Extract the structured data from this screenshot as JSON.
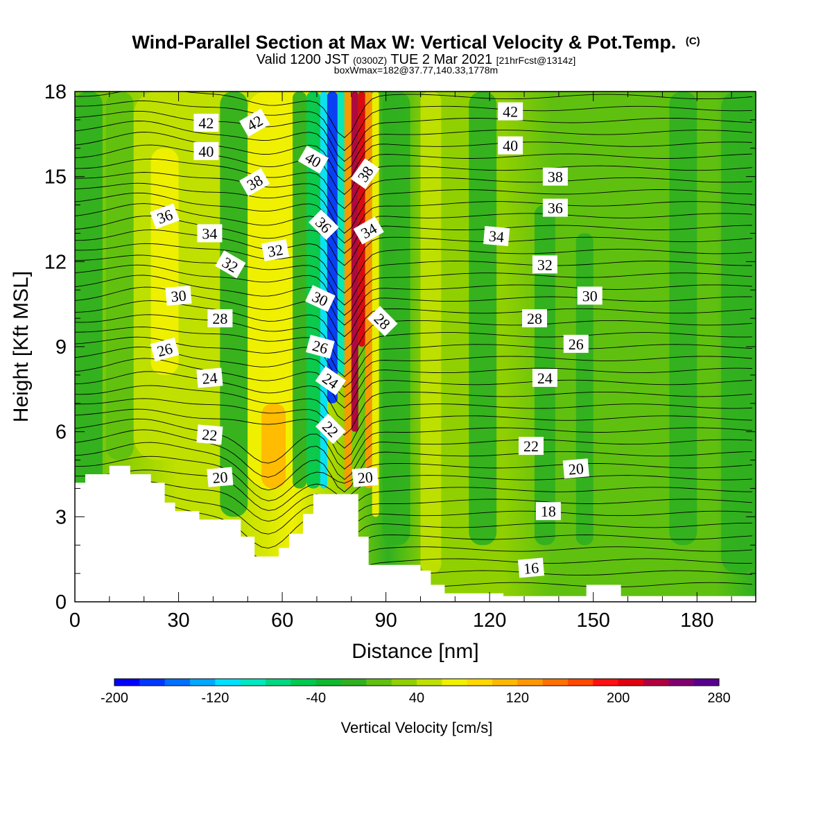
{
  "title": "Wind-Parallel Section at Max W: Vertical Velocity & Pot.Temp.",
  "title_mark": "(C)",
  "subtitle_a": "Valid 1200 JST ",
  "subtitle_b": "(0300Z)",
  "subtitle_c": " TUE 2 Mar 2021 ",
  "subtitle_d": "[21hrFcst@1314z]",
  "subtitle2": "boxWmax=182@37.77,140.33,1778m",
  "chart_data": {
    "type": "heatmap",
    "title": "Wind-Parallel Section at Max W: Vertical Velocity & Pot.Temp.",
    "xlabel": "Distance [nm]",
    "ylabel": "Height [Kft MSL]",
    "xlim": [
      0,
      197
    ],
    "ylim": [
      0,
      18
    ],
    "x_ticks": [
      0,
      30,
      60,
      90,
      120,
      150,
      180
    ],
    "y_ticks": [
      0,
      3,
      6,
      9,
      12,
      15,
      18
    ],
    "x_minor_step": 10,
    "y_minor_step": 1,
    "colorbar": {
      "label": "Vertical Velocity [cm/s]",
      "min": -200,
      "max": 280,
      "step": 20,
      "tick_labels": [
        -200,
        -120,
        -40,
        40,
        120,
        200,
        280
      ],
      "colors": [
        "#0000ff",
        "#0038ff",
        "#0070ff",
        "#00a8ff",
        "#00e0ff",
        "#00e8c0",
        "#00d880",
        "#00c850",
        "#10b830",
        "#30b020",
        "#60c010",
        "#90d000",
        "#c0e000",
        "#f0f000",
        "#ffd800",
        "#ffb800",
        "#ff9800",
        "#ff7000",
        "#ff4800",
        "#ff1010",
        "#e00010",
        "#b00040",
        "#800070",
        "#5a0090"
      ]
    },
    "isentropes_label": "Pot.Temp. (C)",
    "isentrope_labels": [
      {
        "v": "42",
        "x": 38,
        "y": 16.9,
        "r": 0
      },
      {
        "v": "42",
        "x": 52,
        "y": 16.9,
        "r": -30
      },
      {
        "v": "42",
        "x": 126,
        "y": 17.3,
        "r": 0
      },
      {
        "v": "40",
        "x": 38,
        "y": 15.9,
        "r": 0
      },
      {
        "v": "40",
        "x": 69,
        "y": 15.6,
        "r": 30
      },
      {
        "v": "40",
        "x": 126,
        "y": 16.1,
        "r": 0
      },
      {
        "v": "38",
        "x": 52,
        "y": 14.8,
        "r": -30
      },
      {
        "v": "38",
        "x": 84,
        "y": 15.1,
        "r": -55
      },
      {
        "v": "38",
        "x": 139,
        "y": 15.0,
        "r": 0
      },
      {
        "v": "36",
        "x": 26,
        "y": 13.6,
        "r": -20
      },
      {
        "v": "36",
        "x": 72,
        "y": 13.3,
        "r": 45
      },
      {
        "v": "36",
        "x": 139,
        "y": 13.9,
        "r": 0
      },
      {
        "v": "34",
        "x": 39,
        "y": 13.0,
        "r": 0
      },
      {
        "v": "34",
        "x": 85,
        "y": 13.1,
        "r": -30
      },
      {
        "v": "34",
        "x": 122,
        "y": 12.9,
        "r": 5
      },
      {
        "v": "32",
        "x": 58,
        "y": 12.4,
        "r": -10
      },
      {
        "v": "32",
        "x": 45,
        "y": 11.9,
        "r": 30
      },
      {
        "v": "32",
        "x": 136,
        "y": 11.9,
        "r": 0
      },
      {
        "v": "30",
        "x": 30,
        "y": 10.8,
        "r": -5
      },
      {
        "v": "30",
        "x": 71,
        "y": 10.7,
        "r": 25
      },
      {
        "v": "30",
        "x": 149,
        "y": 10.8,
        "r": 0
      },
      {
        "v": "28",
        "x": 42,
        "y": 10.0,
        "r": 0
      },
      {
        "v": "28",
        "x": 89,
        "y": 9.9,
        "r": 45
      },
      {
        "v": "28",
        "x": 133,
        "y": 10.0,
        "r": 0
      },
      {
        "v": "26",
        "x": 26,
        "y": 8.9,
        "r": -15
      },
      {
        "v": "26",
        "x": 71,
        "y": 9.0,
        "r": 15
      },
      {
        "v": "26",
        "x": 145,
        "y": 9.1,
        "r": 0
      },
      {
        "v": "24",
        "x": 39,
        "y": 7.9,
        "r": -5
      },
      {
        "v": "24",
        "x": 74,
        "y": 7.8,
        "r": 35
      },
      {
        "v": "24",
        "x": 136,
        "y": 7.9,
        "r": 0
      },
      {
        "v": "22",
        "x": 39,
        "y": 5.9,
        "r": 5
      },
      {
        "v": "22",
        "x": 74,
        "y": 6.1,
        "r": 45
      },
      {
        "v": "22",
        "x": 132,
        "y": 5.5,
        "r": 0
      },
      {
        "v": "20",
        "x": 42,
        "y": 4.4,
        "r": -5
      },
      {
        "v": "20",
        "x": 84,
        "y": 4.4,
        "r": -5
      },
      {
        "v": "20",
        "x": 145,
        "y": 4.7,
        "r": -5
      },
      {
        "v": "18",
        "x": 137,
        "y": 3.2,
        "r": 0
      },
      {
        "v": "16",
        "x": 132,
        "y": 1.2,
        "r": -5
      }
    ]
  }
}
